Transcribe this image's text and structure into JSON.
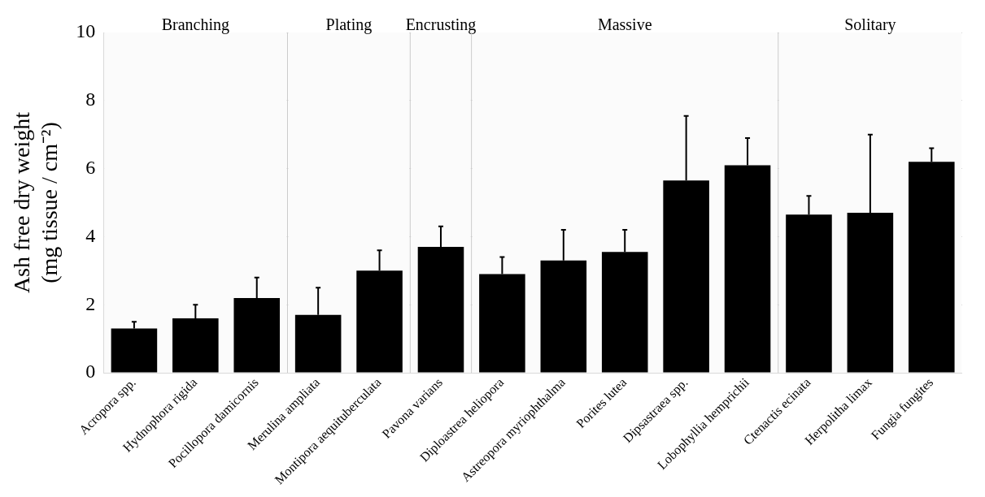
{
  "chart_data": {
    "type": "bar",
    "ylabel": [
      "Ash free dry weight",
      "(mg tissue / cm⁻²)"
    ],
    "categories": [
      "Acropora spp.",
      "Hydnophora rigida",
      "Pocillopora damicornis",
      "Merulina ampliata",
      "Montipora aequituberculata",
      "Pavona varians",
      "Diploastrea heliopora",
      "Astreopora myriophthalma",
      "Porites lutea",
      "Dipsastraea spp.",
      "Lobophyllia hemprichii",
      "Ctenactis ecinata",
      "Herpolitha limax",
      "Fungia fungites"
    ],
    "values": [
      1.3,
      1.6,
      2.2,
      1.7,
      3.0,
      3.7,
      2.9,
      3.3,
      3.55,
      5.65,
      6.1,
      4.65,
      4.7,
      6.2
    ],
    "errors": [
      [
        1.3,
        1.5
      ],
      [
        1.6,
        2.0
      ],
      [
        2.2,
        2.8
      ],
      [
        1.7,
        2.5
      ],
      [
        3.0,
        3.6
      ],
      [
        3.7,
        4.3
      ],
      [
        2.9,
        3.4
      ],
      [
        3.3,
        4.2
      ],
      [
        3.55,
        4.2
      ],
      [
        5.65,
        7.55
      ],
      [
        6.1,
        6.9
      ],
      [
        4.65,
        5.2
      ],
      [
        4.7,
        7.0
      ],
      [
        6.2,
        6.6
      ]
    ],
    "color": "#000000",
    "ylim": [
      0,
      10
    ],
    "yticks": [
      0,
      2,
      4,
      6,
      8,
      10
    ],
    "grid": "y",
    "legend": false,
    "bands": [
      {
        "axis": "x",
        "from": "Acropora spp.",
        "to": "Pocillopora damicornis",
        "label": "Branching",
        "color": "#fbfbfb"
      },
      {
        "axis": "x",
        "from": "Merulina ampliata",
        "to": "Montipora aequituberculata",
        "label": "Plating",
        "color": "#fbfbfb"
      },
      {
        "axis": "x",
        "from": "Pavona varians",
        "to": "Pavona varians",
        "label": "Encrusting",
        "color": "#fbfbfb"
      },
      {
        "axis": "x",
        "from": "Diploastrea heliopora",
        "to": "Lobophyllia hemprichii",
        "label": "Massive",
        "color": "#fbfbfb"
      },
      {
        "axis": "x",
        "from": "Ctenactis ecinata",
        "to": "Fungia fungites",
        "label": "Solitary",
        "color": "#fbfbfb"
      }
    ]
  }
}
